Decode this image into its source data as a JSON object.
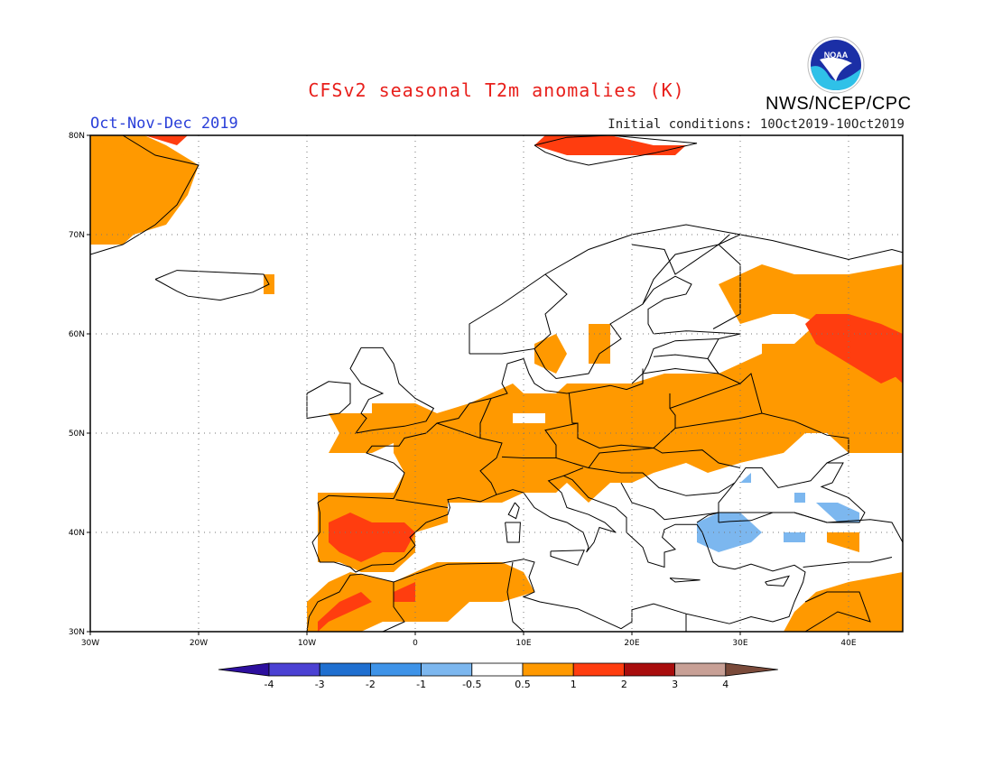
{
  "header": {
    "title": "CFSv2 seasonal T2m anomalies (K)",
    "period": "Oct-Nov-Dec 2019",
    "initial_conditions": "Initial conditions: 10Oct2019-10Oct2019",
    "agency": "NWS/NCEP/CPC",
    "logo_text": "NOAA"
  },
  "map": {
    "lon_labels": [
      "30W",
      "20W",
      "10W",
      "0",
      "10E",
      "20E",
      "30E",
      "40E"
    ],
    "lat_labels": [
      "80N",
      "70N",
      "60N",
      "50N",
      "40N",
      "30N"
    ],
    "lon_range": [
      -30,
      45
    ],
    "lat_range": [
      30,
      80
    ]
  },
  "legend": {
    "colors": [
      "#2d0f9e",
      "#4b41d3",
      "#1f6fd0",
      "#3e93e8",
      "#7cb7ef",
      "#ffffff",
      "#ff9900",
      "#ff3d0f",
      "#a80d0d",
      "#c8a096",
      "#7a4a3a"
    ],
    "labels": [
      "-4",
      "-3",
      "-2",
      "-1",
      "-0.5",
      "0.5",
      "1",
      "2",
      "3",
      "4"
    ]
  },
  "colors": {
    "weak_warm": "#ff9900",
    "warm": "#ff3d0f",
    "cool": "#7cb7ef",
    "title": "#e8201c",
    "period": "#2a3fd9"
  }
}
